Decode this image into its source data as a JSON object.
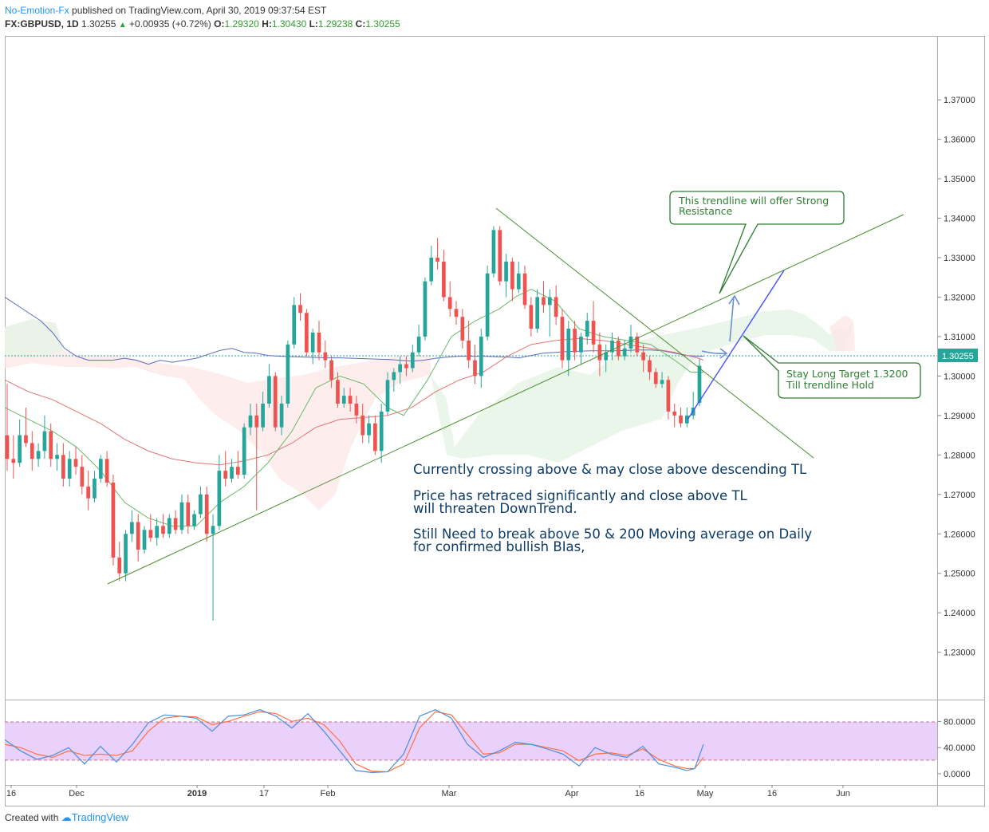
{
  "header": {
    "author": "No-Emotion-Fx",
    "published": " published on TradingView.com, April 30, 2019 09:37:54 EST",
    "symbol": "FX:GBPUSD, 1D",
    "last": "1.30255",
    "change": "+0.00935 (+0.72%)",
    "o_label": "O:",
    "o": "1.29320",
    "h_label": "H:",
    "h": "1.30430",
    "l_label": "L:",
    "l": "1.29238",
    "c_label": "C:",
    "c": "1.30255"
  },
  "footer": {
    "created": "Created with",
    "brand": "TradingView"
  },
  "annotations": {
    "line1": "Currently crossing above & may close above descending TL",
    "line2a": "Price has retraced significantly and close above TL",
    "line2b": " will threaten DownTrend.",
    "line3a": "Still Need to break above 50 & 200 Moving average on Daily",
    "line3b": "for confirmed bullish BIas,",
    "callout1a": "This trendline will offer Strong",
    "callout1b": "Resistance",
    "callout2a": "Stay Long Target 1.3200",
    "callout2b": "Till trendline Hold"
  },
  "colors": {
    "up": "#26a69a",
    "down": "#ef5350",
    "ma200": "#5c6bc0",
    "ma50": "#e57373",
    "ma20": "#66bb6a",
    "trendline": "#4a8f2c",
    "forecast": "#3f51ff",
    "rsi_band": "#e8ccfb",
    "last_price_tag": "#26a69a"
  },
  "chart_data": {
    "type": "candlestick",
    "symbol": "FX:GBPUSD",
    "timeframe": "1D",
    "y_ticks": [
      "1.37000",
      "1.36000",
      "1.35000",
      "1.34000",
      "1.33000",
      "1.32000",
      "1.31000",
      "1.30000",
      "1.29000",
      "1.28000",
      "1.27000",
      "1.26000",
      "1.25000",
      "1.24000",
      "1.23000"
    ],
    "y_range": [
      1.218,
      1.386
    ],
    "x_ticks": [
      "16",
      "Dec",
      "2019",
      "17",
      "Feb",
      "Mar",
      "Apr",
      "16",
      "May",
      "16",
      "Jun"
    ],
    "last_price_label": "1.30255",
    "candles": [
      [
        1.285,
        1.298,
        1.276,
        1.279
      ],
      [
        1.279,
        1.285,
        1.274,
        1.278
      ],
      [
        1.278,
        1.289,
        1.277,
        1.285
      ],
      [
        1.285,
        1.292,
        1.282,
        1.283
      ],
      [
        1.283,
        1.286,
        1.276,
        1.279
      ],
      [
        1.279,
        1.283,
        1.277,
        1.281
      ],
      [
        1.281,
        1.29,
        1.279,
        1.286
      ],
      [
        1.286,
        1.288,
        1.277,
        1.279
      ],
      [
        1.279,
        1.283,
        1.276,
        1.28
      ],
      [
        1.28,
        1.283,
        1.272,
        1.274
      ],
      [
        1.274,
        1.281,
        1.272,
        1.279
      ],
      [
        1.279,
        1.282,
        1.275,
        1.277
      ],
      [
        1.277,
        1.28,
        1.27,
        1.272
      ],
      [
        1.272,
        1.276,
        1.266,
        1.269
      ],
      [
        1.269,
        1.276,
        1.268,
        1.274
      ],
      [
        1.274,
        1.28,
        1.273,
        1.279
      ],
      [
        1.279,
        1.281,
        1.272,
        1.273
      ],
      [
        1.273,
        1.275,
        1.252,
        1.254
      ],
      [
        1.254,
        1.258,
        1.248,
        1.25
      ],
      [
        1.25,
        1.261,
        1.248,
        1.26
      ],
      [
        1.26,
        1.266,
        1.258,
        1.263
      ],
      [
        1.263,
        1.265,
        1.253,
        1.256
      ],
      [
        1.256,
        1.262,
        1.255,
        1.261
      ],
      [
        1.261,
        1.265,
        1.258,
        1.259
      ],
      [
        1.259,
        1.264,
        1.257,
        1.262
      ],
      [
        1.262,
        1.265,
        1.259,
        1.26
      ],
      [
        1.26,
        1.265,
        1.259,
        1.264
      ],
      [
        1.264,
        1.266,
        1.26,
        1.261
      ],
      [
        1.261,
        1.27,
        1.26,
        1.268
      ],
      [
        1.268,
        1.27,
        1.26,
        1.262
      ],
      [
        1.262,
        1.266,
        1.261,
        1.265
      ],
      [
        1.265,
        1.272,
        1.264,
        1.27
      ],
      [
        1.27,
        1.272,
        1.258,
        1.26
      ],
      [
        1.26,
        1.265,
        1.238,
        1.262
      ],
      [
        1.262,
        1.28,
        1.261,
        1.276
      ],
      [
        1.276,
        1.281,
        1.272,
        1.274
      ],
      [
        1.274,
        1.279,
        1.273,
        1.277
      ],
      [
        1.277,
        1.281,
        1.274,
        1.275
      ],
      [
        1.275,
        1.288,
        1.274,
        1.287
      ],
      [
        1.287,
        1.293,
        1.285,
        1.29
      ],
      [
        1.29,
        1.293,
        1.266,
        1.287
      ],
      [
        1.287,
        1.296,
        1.286,
        1.293
      ],
      [
        1.293,
        1.303,
        1.292,
        1.3
      ],
      [
        1.3,
        1.301,
        1.286,
        1.287
      ],
      [
        1.287,
        1.295,
        1.285,
        1.293
      ],
      [
        1.293,
        1.309,
        1.292,
        1.308
      ],
      [
        1.308,
        1.32,
        1.307,
        1.318
      ],
      [
        1.318,
        1.321,
        1.314,
        1.316
      ],
      [
        1.316,
        1.317,
        1.305,
        1.306
      ],
      [
        1.306,
        1.312,
        1.303,
        1.311
      ],
      [
        1.311,
        1.314,
        1.304,
        1.306
      ],
      [
        1.306,
        1.309,
        1.302,
        1.304
      ],
      [
        1.304,
        1.305,
        1.297,
        1.299
      ],
      [
        1.299,
        1.301,
        1.292,
        1.293
      ],
      [
        1.293,
        1.297,
        1.292,
        1.295
      ],
      [
        1.295,
        1.297,
        1.291,
        1.293
      ],
      [
        1.293,
        1.295,
        1.288,
        1.29
      ],
      [
        1.29,
        1.293,
        1.283,
        1.285
      ],
      [
        1.285,
        1.29,
        1.283,
        1.288
      ],
      [
        1.288,
        1.29,
        1.28,
        1.281
      ],
      [
        1.281,
        1.293,
        1.278,
        1.291
      ],
      [
        1.291,
        1.301,
        1.29,
        1.299
      ],
      [
        1.299,
        1.302,
        1.296,
        1.301
      ],
      [
        1.301,
        1.305,
        1.298,
        1.303
      ],
      [
        1.303,
        1.305,
        1.3,
        1.302
      ],
      [
        1.302,
        1.308,
        1.301,
        1.306
      ],
      [
        1.306,
        1.313,
        1.305,
        1.31
      ],
      [
        1.31,
        1.325,
        1.309,
        1.324
      ],
      [
        1.324,
        1.333,
        1.323,
        1.33
      ],
      [
        1.33,
        1.335,
        1.327,
        1.329
      ],
      [
        1.329,
        1.332,
        1.319,
        1.32
      ],
      [
        1.32,
        1.324,
        1.315,
        1.317
      ],
      [
        1.317,
        1.319,
        1.313,
        1.315
      ],
      [
        1.315,
        1.317,
        1.307,
        1.309
      ],
      [
        1.309,
        1.314,
        1.302,
        1.304
      ],
      [
        1.304,
        1.308,
        1.298,
        1.3
      ],
      [
        1.3,
        1.312,
        1.297,
        1.31
      ],
      [
        1.31,
        1.328,
        1.309,
        1.326
      ],
      [
        1.326,
        1.338,
        1.325,
        1.337
      ],
      [
        1.337,
        1.338,
        1.323,
        1.324
      ],
      [
        1.324,
        1.331,
        1.32,
        1.329
      ],
      [
        1.329,
        1.33,
        1.319,
        1.322
      ],
      [
        1.322,
        1.329,
        1.321,
        1.326
      ],
      [
        1.326,
        1.328,
        1.317,
        1.318
      ],
      [
        1.318,
        1.32,
        1.31,
        1.312
      ],
      [
        1.312,
        1.322,
        1.311,
        1.32
      ],
      [
        1.32,
        1.324,
        1.316,
        1.318
      ],
      [
        1.318,
        1.322,
        1.31,
        1.32
      ],
      [
        1.32,
        1.323,
        1.313,
        1.315
      ],
      [
        1.315,
        1.317,
        1.302,
        1.304
      ],
      [
        1.304,
        1.314,
        1.3,
        1.312
      ],
      [
        1.312,
        1.314,
        1.304,
        1.306
      ],
      [
        1.306,
        1.311,
        1.303,
        1.31
      ],
      [
        1.31,
        1.316,
        1.308,
        1.314
      ],
      [
        1.314,
        1.319,
        1.306,
        1.308
      ],
      [
        1.308,
        1.311,
        1.3,
        1.304
      ],
      [
        1.304,
        1.308,
        1.301,
        1.306
      ],
      [
        1.306,
        1.311,
        1.304,
        1.309
      ],
      [
        1.309,
        1.31,
        1.304,
        1.305
      ],
      [
        1.305,
        1.309,
        1.304,
        1.307
      ],
      [
        1.307,
        1.313,
        1.306,
        1.31
      ],
      [
        1.31,
        1.311,
        1.305,
        1.306
      ],
      [
        1.306,
        1.308,
        1.301,
        1.304
      ],
      [
        1.304,
        1.305,
        1.299,
        1.301
      ],
      [
        1.301,
        1.302,
        1.297,
        1.298
      ],
      [
        1.298,
        1.301,
        1.297,
        1.299
      ],
      [
        1.299,
        1.3,
        1.289,
        1.291
      ],
      [
        1.291,
        1.293,
        1.287,
        1.29
      ],
      [
        1.29,
        1.292,
        1.287,
        1.288
      ],
      [
        1.288,
        1.292,
        1.287,
        1.29
      ],
      [
        1.29,
        1.296,
        1.289,
        1.292
      ],
      [
        1.2932,
        1.3043,
        1.2924,
        1.3026
      ]
    ],
    "ma200": [
      [
        0,
        1.32
      ],
      [
        15,
        1.318
      ],
      [
        30,
        1.316
      ],
      [
        45,
        1.314
      ],
      [
        60,
        1.311
      ],
      [
        75,
        1.307
      ],
      [
        90,
        1.305
      ],
      [
        105,
        1.304
      ],
      [
        120,
        1.304
      ],
      [
        135,
        1.304
      ],
      [
        150,
        1.3045
      ],
      [
        165,
        1.304
      ],
      [
        180,
        1.303
      ],
      [
        195,
        1.304
      ],
      [
        210,
        1.3035
      ],
      [
        225,
        1.304
      ],
      [
        240,
        1.3045
      ],
      [
        255,
        1.3055
      ],
      [
        270,
        1.3065
      ],
      [
        285,
        1.307
      ],
      [
        300,
        1.306
      ],
      [
        315,
        1.3058
      ],
      [
        330,
        1.3052
      ],
      [
        345,
        1.305
      ],
      [
        360,
        1.3049
      ],
      [
        375,
        1.3048
      ],
      [
        390,
        1.3047
      ],
      [
        405,
        1.3046
      ],
      [
        420,
        1.3046
      ],
      [
        435,
        1.3045
      ],
      [
        450,
        1.3044
      ],
      [
        465,
        1.3043
      ],
      [
        480,
        1.3042
      ],
      [
        495,
        1.304
      ],
      [
        510,
        1.3038
      ],
      [
        525,
        1.304
      ],
      [
        540,
        1.3045
      ],
      [
        555,
        1.3048
      ],
      [
        570,
        1.305
      ],
      [
        585,
        1.305
      ],
      [
        600,
        1.305
      ],
      [
        615,
        1.3049
      ],
      [
        630,
        1.3048
      ],
      [
        645,
        1.3046
      ],
      [
        660,
        1.3052
      ],
      [
        675,
        1.3058
      ],
      [
        690,
        1.306
      ],
      [
        705,
        1.3062
      ],
      [
        720,
        1.3063
      ],
      [
        735,
        1.3064
      ],
      [
        750,
        1.3064
      ],
      [
        765,
        1.3064
      ],
      [
        780,
        1.3065
      ],
      [
        795,
        1.3066
      ],
      [
        810,
        1.3066
      ],
      [
        825,
        1.3064
      ],
      [
        840,
        1.3058
      ],
      [
        855,
        1.3052
      ],
      [
        870,
        1.305
      ],
      [
        876,
        1.305
      ]
    ],
    "ma50": [
      [
        0,
        1.299
      ],
      [
        30,
        1.296
      ],
      [
        60,
        1.294
      ],
      [
        90,
        1.291
      ],
      [
        120,
        1.288
      ],
      [
        150,
        1.284
      ],
      [
        180,
        1.281
      ],
      [
        210,
        1.279
      ],
      [
        240,
        1.278
      ],
      [
        270,
        1.2775
      ],
      [
        300,
        1.2785
      ],
      [
        330,
        1.28
      ],
      [
        360,
        1.283
      ],
      [
        390,
        1.287
      ],
      [
        420,
        1.289
      ],
      [
        450,
        1.2895
      ],
      [
        480,
        1.29
      ],
      [
        510,
        1.292
      ],
      [
        540,
        1.296
      ],
      [
        570,
        1.299
      ],
      [
        600,
        1.301
      ],
      [
        630,
        1.305
      ],
      [
        660,
        1.308
      ],
      [
        690,
        1.309
      ],
      [
        720,
        1.3095
      ],
      [
        750,
        1.309
      ],
      [
        780,
        1.308
      ],
      [
        810,
        1.307
      ],
      [
        840,
        1.306
      ],
      [
        870,
        1.3045
      ],
      [
        876,
        1.304
      ]
    ],
    "ma20": [
      [
        0,
        1.292
      ],
      [
        30,
        1.289
      ],
      [
        60,
        1.286
      ],
      [
        90,
        1.282
      ],
      [
        120,
        1.276
      ],
      [
        150,
        1.268
      ],
      [
        180,
        1.264
      ],
      [
        210,
        1.262
      ],
      [
        240,
        1.262
      ],
      [
        270,
        1.268
      ],
      [
        300,
        1.272
      ],
      [
        330,
        1.278
      ],
      [
        360,
        1.286
      ],
      [
        390,
        1.297
      ],
      [
        420,
        1.3
      ],
      [
        450,
        1.298
      ],
      [
        480,
        1.292
      ],
      [
        500,
        1.29
      ],
      [
        530,
        1.299
      ],
      [
        560,
        1.31
      ],
      [
        590,
        1.314
      ],
      [
        620,
        1.317
      ],
      [
        640,
        1.32
      ],
      [
        660,
        1.322
      ],
      [
        690,
        1.319
      ],
      [
        720,
        1.312
      ],
      [
        750,
        1.31
      ],
      [
        780,
        1.309
      ],
      [
        810,
        1.308
      ],
      [
        840,
        1.304
      ],
      [
        860,
        1.301
      ],
      [
        876,
        1.301
      ]
    ],
    "rsi_ticks": [
      "80.0000",
      "40.0000",
      "0.0000"
    ],
    "rsi_band": [
      20,
      80
    ],
    "stoch_k": [
      [
        0,
        52
      ],
      [
        20,
        35
      ],
      [
        40,
        22
      ],
      [
        60,
        28
      ],
      [
        80,
        40
      ],
      [
        100,
        15
      ],
      [
        120,
        42
      ],
      [
        140,
        18
      ],
      [
        160,
        45
      ],
      [
        180,
        78
      ],
      [
        200,
        90
      ],
      [
        220,
        88
      ],
      [
        240,
        85
      ],
      [
        260,
        65
      ],
      [
        280,
        88
      ],
      [
        300,
        90
      ],
      [
        320,
        98
      ],
      [
        340,
        88
      ],
      [
        360,
        70
      ],
      [
        380,
        92
      ],
      [
        400,
        65
      ],
      [
        420,
        35
      ],
      [
        440,
        5
      ],
      [
        460,
        2
      ],
      [
        480,
        3
      ],
      [
        500,
        30
      ],
      [
        520,
        88
      ],
      [
        540,
        98
      ],
      [
        560,
        85
      ],
      [
        580,
        45
      ],
      [
        600,
        25
      ],
      [
        620,
        35
      ],
      [
        640,
        48
      ],
      [
        660,
        45
      ],
      [
        680,
        38
      ],
      [
        700,
        30
      ],
      [
        720,
        12
      ],
      [
        740,
        40
      ],
      [
        760,
        30
      ],
      [
        780,
        25
      ],
      [
        800,
        42
      ],
      [
        820,
        15
      ],
      [
        840,
        10
      ],
      [
        855,
        5
      ],
      [
        865,
        8
      ],
      [
        876,
        45
      ]
    ],
    "stoch_d": [
      [
        0,
        45
      ],
      [
        20,
        40
      ],
      [
        40,
        30
      ],
      [
        60,
        25
      ],
      [
        80,
        35
      ],
      [
        100,
        28
      ],
      [
        120,
        30
      ],
      [
        140,
        28
      ],
      [
        160,
        35
      ],
      [
        180,
        65
      ],
      [
        200,
        85
      ],
      [
        220,
        88
      ],
      [
        240,
        87
      ],
      [
        260,
        75
      ],
      [
        280,
        80
      ],
      [
        300,
        88
      ],
      [
        320,
        95
      ],
      [
        340,
        92
      ],
      [
        360,
        80
      ],
      [
        380,
        85
      ],
      [
        400,
        75
      ],
      [
        420,
        50
      ],
      [
        440,
        15
      ],
      [
        460,
        4
      ],
      [
        480,
        3
      ],
      [
        500,
        15
      ],
      [
        520,
        70
      ],
      [
        540,
        95
      ],
      [
        560,
        90
      ],
      [
        580,
        60
      ],
      [
        600,
        30
      ],
      [
        620,
        32
      ],
      [
        640,
        45
      ],
      [
        660,
        45
      ],
      [
        680,
        40
      ],
      [
        700,
        35
      ],
      [
        720,
        20
      ],
      [
        740,
        30
      ],
      [
        760,
        32
      ],
      [
        780,
        28
      ],
      [
        800,
        38
      ],
      [
        820,
        22
      ],
      [
        840,
        12
      ],
      [
        855,
        8
      ],
      [
        865,
        8
      ],
      [
        876,
        25
      ]
    ]
  }
}
